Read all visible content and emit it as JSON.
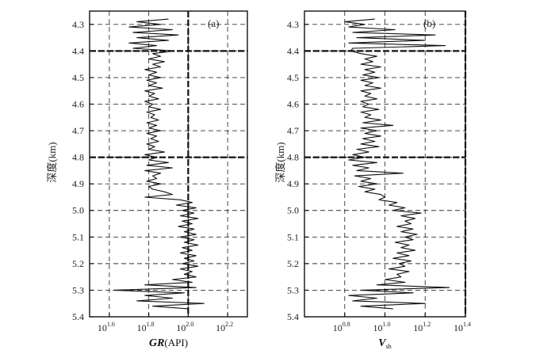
{
  "chart_data": [
    {
      "type": "line",
      "panel_label": "(a)",
      "xlabel_main": "GR",
      "xlabel_unit": "(API)",
      "ylabel": "深度(km)",
      "x_scale": "log",
      "xlim_log10": [
        1.5,
        2.3
      ],
      "xticks": [
        {
          "base": "10",
          "exp": "1.6",
          "log10": 1.6
        },
        {
          "base": "10",
          "exp": "1.8",
          "log10": 1.8
        },
        {
          "base": "10",
          "exp": "2.0",
          "log10": 2.0
        },
        {
          "base": "10",
          "exp": "2.2",
          "log10": 2.2
        }
      ],
      "yticks": [
        "4.3",
        "4.4",
        "4.5",
        "4.6",
        "4.7",
        "4.8",
        "4.9",
        "5.0",
        "5.1",
        "5.2",
        "5.3",
        "5.4"
      ],
      "ylim": [
        4.25,
        5.4
      ],
      "grid": true,
      "reference_lines": {
        "depth": [
          4.4,
          4.8
        ],
        "x_log10": [
          2.0
        ]
      },
      "series": [
        {
          "depth": [
            4.28,
            4.29,
            4.3,
            4.31,
            4.32,
            4.33,
            4.34,
            4.35,
            4.36,
            4.37,
            4.38,
            4.39,
            4.4,
            4.41,
            4.42,
            4.43,
            4.44,
            4.45,
            4.46,
            4.47,
            4.48,
            4.49,
            4.5,
            4.51,
            4.52,
            4.53,
            4.54,
            4.55,
            4.56,
            4.57,
            4.58,
            4.59,
            4.6,
            4.61,
            4.62,
            4.63,
            4.64,
            4.65,
            4.66,
            4.67,
            4.68,
            4.69,
            4.7,
            4.71,
            4.72,
            4.73,
            4.74,
            4.75,
            4.76,
            4.77,
            4.78,
            4.79,
            4.8,
            4.81,
            4.82,
            4.83,
            4.84,
            4.85,
            4.86,
            4.87,
            4.88,
            4.89,
            4.9,
            4.91,
            4.92,
            4.93,
            4.94,
            4.95,
            4.96,
            4.97,
            4.98,
            4.99,
            5.0,
            5.01,
            5.02,
            5.03,
            5.04,
            5.05,
            5.06,
            5.07,
            5.08,
            5.09,
            5.1,
            5.11,
            5.12,
            5.13,
            5.14,
            5.15,
            5.16,
            5.17,
            5.18,
            5.19,
            5.2,
            5.21,
            5.22,
            5.23,
            5.24,
            5.25,
            5.26,
            5.27,
            5.28,
            5.29,
            5.3,
            5.31,
            5.32,
            5.33,
            5.34,
            5.35,
            5.36,
            5.37
          ],
          "gr_log10": [
            1.9,
            1.74,
            1.86,
            1.7,
            1.92,
            1.72,
            1.95,
            1.74,
            1.9,
            1.7,
            1.84,
            1.72,
            1.93,
            1.82,
            1.86,
            1.8,
            1.88,
            1.82,
            1.86,
            1.78,
            1.84,
            1.8,
            1.86,
            1.79,
            1.84,
            1.8,
            1.87,
            1.78,
            1.83,
            1.8,
            1.85,
            1.78,
            1.82,
            1.8,
            1.86,
            1.79,
            1.83,
            1.81,
            1.85,
            1.79,
            1.84,
            1.8,
            1.86,
            1.79,
            1.84,
            1.81,
            1.85,
            1.79,
            1.83,
            1.8,
            1.88,
            1.78,
            1.84,
            1.8,
            1.9,
            1.79,
            1.92,
            1.78,
            1.86,
            1.82,
            1.84,
            1.79,
            1.86,
            1.8,
            1.82,
            1.88,
            1.92,
            1.78,
            1.96,
            2.02,
            1.94,
            2.04,
            1.97,
            2.03,
            1.96,
            2.05,
            1.97,
            2.02,
            1.95,
            2.03,
            1.98,
            2.04,
            1.96,
            2.03,
            1.98,
            2.05,
            1.97,
            2.02,
            1.96,
            2.04,
            1.98,
            2.03,
            1.97,
            2.05,
            1.96,
            2.02,
            1.98,
            2.04,
            1.92,
            2.02,
            1.78,
            2.04,
            1.62,
            1.98,
            1.78,
            1.92,
            1.74,
            2.08,
            1.82,
            2.0
          ]
        }
      ]
    },
    {
      "type": "line",
      "panel_label": "(b)",
      "xlabel_main": "V",
      "xlabel_sub": "sh",
      "ylabel": "深度(km)",
      "x_scale": "log",
      "xlim_log10": [
        0.6,
        1.4
      ],
      "xticks": [
        {
          "base": "10",
          "exp": "0.8",
          "log10": 0.8
        },
        {
          "base": "10",
          "exp": "1.0",
          "log10": 1.0
        },
        {
          "base": "10",
          "exp": "1.2",
          "log10": 1.2
        },
        {
          "base": "10",
          "exp": "1.4",
          "log10": 1.4
        }
      ],
      "yticks": [
        "4.3",
        "4.4",
        "4.5",
        "4.6",
        "4.7",
        "4.8",
        "4.9",
        "5.0",
        "5.1",
        "5.2",
        "5.3",
        "5.4"
      ],
      "ylim": [
        4.25,
        5.4
      ],
      "grid": true,
      "reference_lines": {
        "depth": [
          4.4,
          4.8
        ],
        "x_log10": [
          1.4
        ]
      },
      "series": [
        {
          "depth": [
            4.28,
            4.29,
            4.3,
            4.31,
            4.32,
            4.33,
            4.34,
            4.35,
            4.36,
            4.37,
            4.38,
            4.39,
            4.4,
            4.41,
            4.42,
            4.43,
            4.44,
            4.45,
            4.46,
            4.47,
            4.48,
            4.49,
            4.5,
            4.51,
            4.52,
            4.53,
            4.54,
            4.55,
            4.56,
            4.57,
            4.58,
            4.59,
            4.6,
            4.61,
            4.62,
            4.63,
            4.64,
            4.65,
            4.66,
            4.67,
            4.68,
            4.69,
            4.7,
            4.71,
            4.72,
            4.73,
            4.74,
            4.75,
            4.76,
            4.77,
            4.78,
            4.79,
            4.8,
            4.81,
            4.82,
            4.83,
            4.84,
            4.85,
            4.86,
            4.87,
            4.88,
            4.89,
            4.9,
            4.91,
            4.92,
            4.93,
            4.94,
            4.95,
            4.96,
            4.97,
            4.98,
            4.99,
            5.0,
            5.01,
            5.02,
            5.03,
            5.04,
            5.05,
            5.06,
            5.07,
            5.08,
            5.09,
            5.1,
            5.11,
            5.12,
            5.13,
            5.14,
            5.15,
            5.16,
            5.17,
            5.18,
            5.19,
            5.2,
            5.21,
            5.22,
            5.23,
            5.24,
            5.25,
            5.26,
            5.27,
            5.28,
            5.29,
            5.3,
            5.31,
            5.32,
            5.33,
            5.34,
            5.35,
            5.36,
            5.37
          ],
          "vsh_log10": [
            0.95,
            0.8,
            0.9,
            0.82,
            1.05,
            0.84,
            1.25,
            0.86,
            1.2,
            0.82,
            1.3,
            0.84,
            0.83,
            0.88,
            0.96,
            0.9,
            0.94,
            0.88,
            0.98,
            0.9,
            0.95,
            0.89,
            0.97,
            0.88,
            0.94,
            0.9,
            0.98,
            0.88,
            0.93,
            0.9,
            0.96,
            0.88,
            0.92,
            0.89,
            0.97,
            0.88,
            0.93,
            0.9,
            0.98,
            0.89,
            1.04,
            0.88,
            0.96,
            0.9,
            0.98,
            0.89,
            0.95,
            0.88,
            0.97,
            0.86,
            0.92,
            0.84,
            0.9,
            0.82,
            0.96,
            0.84,
            0.92,
            0.86,
            1.09,
            0.85,
            0.93,
            0.88,
            0.96,
            0.87,
            0.95,
            0.9,
            0.98,
            1.0,
            0.97,
            1.06,
            1.02,
            1.1,
            1.04,
            1.18,
            1.08,
            1.15,
            1.1,
            1.13,
            1.06,
            1.14,
            1.08,
            1.16,
            1.1,
            1.14,
            1.05,
            1.12,
            1.08,
            1.15,
            1.06,
            1.12,
            1.04,
            1.13,
            1.07,
            1.1,
            1.02,
            1.12,
            1.06,
            1.08,
            1.0,
            1.1,
            0.96,
            1.32,
            0.88,
            1.14,
            0.82,
            0.96,
            0.84,
            1.2,
            0.88,
            1.04
          ]
        }
      ]
    }
  ]
}
